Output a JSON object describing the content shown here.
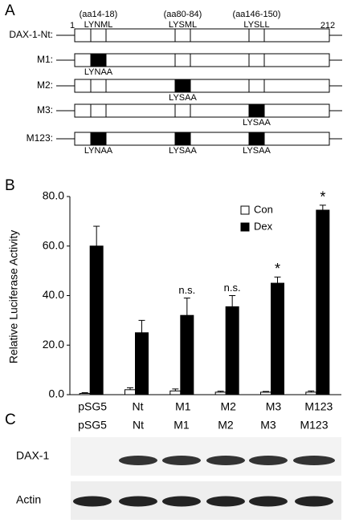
{
  "panel_a": {
    "letter": "A",
    "start": "1",
    "end": "212",
    "motifs": [
      {
        "position": "(aa14-18)",
        "sequence": "LYNML"
      },
      {
        "position": "(aa80-84)",
        "sequence": "LYSML"
      },
      {
        "position": "(aa146-150)",
        "sequence": "LYSLL"
      }
    ],
    "constructs": [
      {
        "name": "DAX-1-Nt:",
        "mutated": [
          null,
          null,
          null
        ]
      },
      {
        "name": "M1:",
        "mutated": [
          "LYNAA",
          null,
          null
        ]
      },
      {
        "name": "M2:",
        "mutated": [
          null,
          "LYSAA",
          null
        ]
      },
      {
        "name": "M3:",
        "mutated": [
          null,
          null,
          "LYSAA"
        ]
      },
      {
        "name": "M123:",
        "mutated": [
          "LYNAA",
          "LYSAA",
          "LYSAA"
        ]
      }
    ]
  },
  "chart_data": {
    "type": "bar",
    "letter": "B",
    "y_label": "Relative Luciferase Activity",
    "categories": [
      "pSG5",
      "Nt",
      "M1",
      "M2",
      "M3",
      "M123"
    ],
    "series": [
      {
        "name": "Con",
        "color": "#ffffff",
        "values": [
          0.5,
          2,
          1.5,
          1,
          1,
          1
        ],
        "errors": [
          0.3,
          0.8,
          0.8,
          0.4,
          0.3,
          0.5
        ]
      },
      {
        "name": "Dex",
        "color": "#000000",
        "values": [
          60,
          25,
          32,
          35.5,
          45,
          74.5
        ],
        "errors": [
          8,
          5,
          7,
          4.5,
          2.5,
          2
        ]
      }
    ],
    "annotations": [
      null,
      null,
      "n.s.",
      "n.s.",
      "*",
      "*"
    ],
    "ylim": [
      0,
      80
    ],
    "yticks": [
      {
        "value": 0,
        "label": "0.0"
      },
      {
        "value": 20,
        "label": "20.0"
      },
      {
        "value": 40,
        "label": "40.0"
      },
      {
        "value": 60,
        "label": "60.0"
      },
      {
        "value": 80,
        "label": "80.0"
      }
    ],
    "legend": "top-right"
  },
  "panel_c": {
    "letter": "C",
    "lanes": [
      "pSG5",
      "Nt",
      "M1",
      "M2",
      "M3",
      "M123"
    ],
    "blots": [
      "DAX-1",
      "Actin"
    ]
  }
}
